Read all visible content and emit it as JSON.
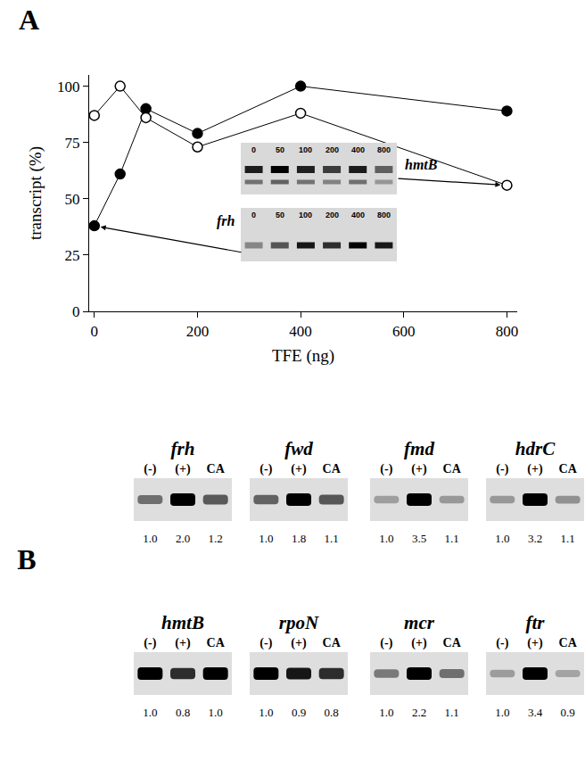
{
  "chart_data": {
    "type": "line",
    "label": "A",
    "x_label": "TFE (ng)",
    "y_label": "transcript (%)",
    "x": [
      0,
      50,
      100,
      200,
      400,
      800
    ],
    "series": [
      {
        "name": "frh",
        "color": "#000000",
        "marker": "circle",
        "values": [
          38,
          61,
          90,
          79,
          100,
          89
        ]
      },
      {
        "name": "hmtB",
        "color": "#000000",
        "marker": "circle-open",
        "values": [
          87,
          100,
          86,
          73,
          88,
          56
        ]
      }
    ],
    "xlim": [
      -10,
      820
    ],
    "xticks": [
      0,
      200,
      400,
      600,
      800
    ],
    "ylim": [
      0,
      105
    ],
    "yticks": [
      0,
      25,
      50,
      75,
      100
    ],
    "grid": false
  },
  "panel_b": {
    "label": "B",
    "lanes": [
      "(-)",
      "(+)",
      "CA"
    ],
    "gels": [
      {
        "name": "frh",
        "values": [
          1.0,
          2.0,
          1.2
        ],
        "value_labels": [
          "1.0",
          "2.0",
          "1.2"
        ]
      },
      {
        "name": "fwd",
        "values": [
          1.0,
          1.8,
          1.1
        ],
        "value_labels": [
          "1.0",
          "1.8",
          "1.1"
        ]
      },
      {
        "name": "fmd",
        "values": [
          1.0,
          3.5,
          1.1
        ],
        "value_labels": [
          "1.0",
          "3.5",
          "1.1"
        ]
      },
      {
        "name": "hdrC",
        "values": [
          1.0,
          3.2,
          1.1
        ],
        "value_labels": [
          "1.0",
          "3.2",
          "1.1"
        ]
      },
      {
        "name": "hmtB",
        "values": [
          1.0,
          0.8,
          1.0
        ],
        "value_labels": [
          "1.0",
          "0.8",
          "1.0"
        ]
      },
      {
        "name": "rpoN",
        "values": [
          1.0,
          0.9,
          0.8
        ],
        "value_labels": [
          "1.0",
          "0.9",
          "0.8"
        ]
      },
      {
        "name": "mcr",
        "values": [
          1.0,
          2.2,
          1.1
        ],
        "value_labels": [
          "1.0",
          "2.2",
          "1.1"
        ]
      },
      {
        "name": "ftr",
        "values": [
          1.0,
          3.4,
          0.9
        ],
        "value_labels": [
          "1.0",
          "3.4",
          "0.9"
        ]
      }
    ]
  }
}
